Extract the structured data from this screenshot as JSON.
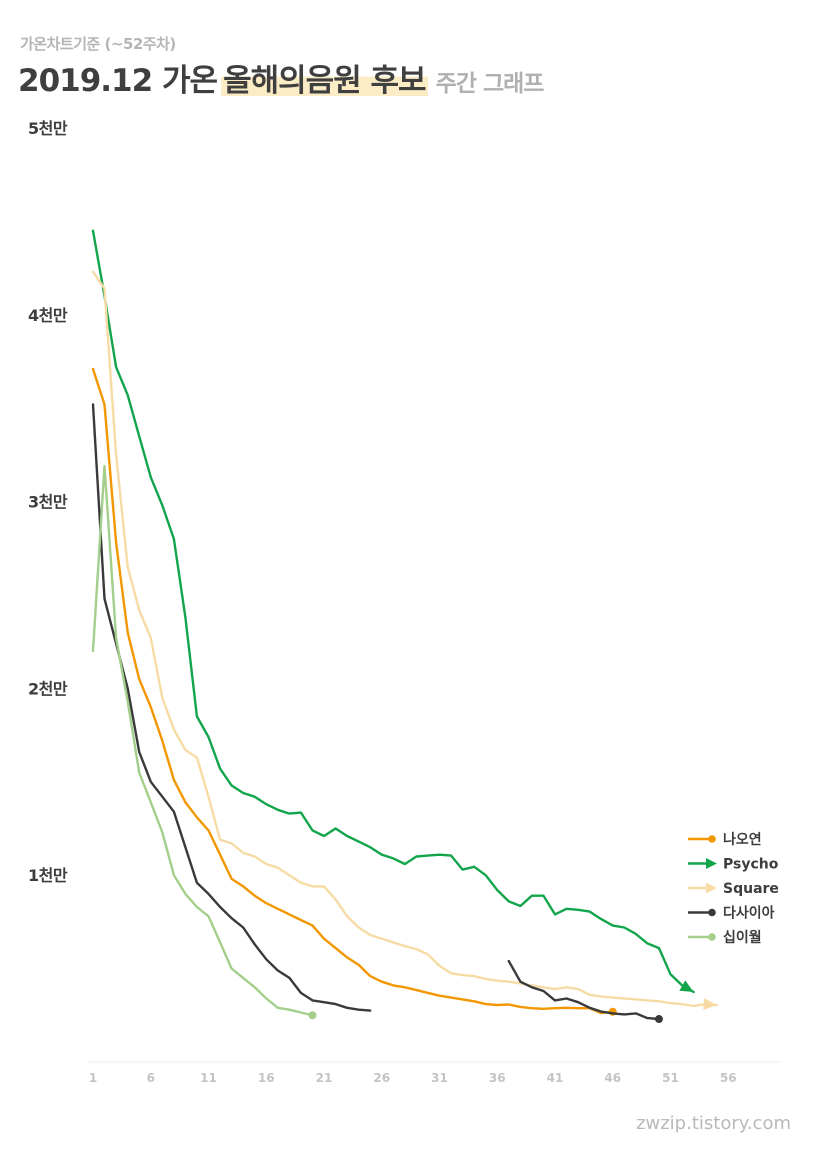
{
  "header": {
    "subtitle": "가온차트기준 (~52주차)",
    "title_prefix": "2019.12 가온",
    "title_highlight": "올해의음원 후보",
    "title_suffix": "주간 그래프"
  },
  "footer": {
    "credit": "zwzip.tistory.com"
  },
  "chart_data": {
    "type": "line",
    "title": "2019.12 가온 올해의음원 후보 주간 그래프",
    "xlabel": "",
    "ylabel": "",
    "x_ticks": [
      1,
      6,
      11,
      16,
      21,
      26,
      31,
      36,
      41,
      46,
      51,
      56
    ],
    "y_ticks": [
      {
        "value": 10000,
        "label": "1천만"
      },
      {
        "value": 20000,
        "label": "2천만"
      },
      {
        "value": 30000,
        "label": "3천만"
      },
      {
        "value": 40000,
        "label": "4천만"
      },
      {
        "value": 50000,
        "label": "5천만"
      }
    ],
    "xlim": [
      1,
      57
    ],
    "ylim": [
      0,
      50000
    ],
    "grid": false,
    "legend_position": "right",
    "series": [
      {
        "name": "나오연",
        "color": "#f39700",
        "end_marker": "dot",
        "x": [
          1,
          2,
          3,
          4,
          5,
          6,
          7,
          8,
          9,
          10,
          11,
          12,
          13,
          14,
          15,
          16,
          17,
          18,
          19,
          20,
          21,
          22,
          23,
          24,
          25,
          26,
          27,
          28,
          29,
          30,
          31,
          32,
          33,
          34,
          35,
          36,
          37,
          38,
          39,
          40,
          41,
          42,
          43,
          44,
          45,
          46
        ],
        "y": [
          37100,
          35200,
          27800,
          23000,
          20500,
          19000,
          17200,
          15100,
          13900,
          13100,
          12400,
          11100,
          9800,
          9400,
          8900,
          8500,
          8200,
          7900,
          7600,
          7300,
          6600,
          6100,
          5600,
          5200,
          4600,
          4300,
          4100,
          4000,
          3850,
          3700,
          3550,
          3450,
          3350,
          3250,
          3100,
          3050,
          3080,
          2950,
          2880,
          2850,
          2880,
          2900,
          2880,
          2880,
          2620,
          2690
        ]
      },
      {
        "name": "Psycho",
        "color": "#12a54b",
        "end_marker": "arrow",
        "x": [
          1,
          2,
          3,
          4,
          5,
          6,
          7,
          8,
          9,
          10,
          11,
          12,
          13,
          14,
          15,
          16,
          17,
          18,
          19,
          20,
          21,
          22,
          23,
          24,
          25,
          26,
          27,
          28,
          29,
          30,
          31,
          32,
          33,
          34,
          35,
          36,
          37,
          38,
          39,
          40,
          41,
          42,
          43,
          44,
          45,
          46,
          47,
          48,
          49,
          50,
          51,
          52,
          53
        ],
        "y": [
          44500,
          41000,
          37200,
          35700,
          33500,
          31300,
          29800,
          28000,
          23800,
          18500,
          17400,
          15700,
          14800,
          14400,
          14200,
          13800,
          13500,
          13300,
          13350,
          12400,
          12100,
          12500,
          12100,
          11800,
          11500,
          11100,
          10900,
          10600,
          11000,
          11050,
          11100,
          11050,
          10300,
          10450,
          10000,
          9200,
          8600,
          8350,
          8900,
          8900,
          7900,
          8200,
          8150,
          8050,
          7650,
          7300,
          7200,
          6850,
          6350,
          6100,
          4700,
          4100,
          3750
        ]
      },
      {
        "name": "Square",
        "color": "#f7dba4",
        "end_marker": "arrow",
        "x": [
          1,
          2,
          3,
          4,
          5,
          6,
          7,
          8,
          9,
          10,
          11,
          12,
          13,
          14,
          15,
          16,
          17,
          18,
          19,
          20,
          21,
          22,
          23,
          24,
          25,
          26,
          27,
          28,
          29,
          30,
          31,
          32,
          33,
          34,
          35,
          36,
          37,
          38,
          39,
          40,
          41,
          42,
          43,
          44,
          45,
          46,
          47,
          48,
          49,
          50,
          51,
          52,
          53,
          54,
          55
        ],
        "y": [
          42300,
          41400,
          32500,
          26500,
          24200,
          22700,
          19500,
          17800,
          16700,
          16300,
          14200,
          11900,
          11700,
          11200,
          11000,
          10600,
          10400,
          10000,
          9600,
          9400,
          9400,
          8700,
          7800,
          7200,
          6800,
          6600,
          6400,
          6200,
          6050,
          5750,
          5150,
          4750,
          4650,
          4600,
          4450,
          4350,
          4300,
          4200,
          4100,
          4000,
          3900,
          4000,
          3900,
          3600,
          3500,
          3450,
          3400,
          3350,
          3300,
          3250,
          3150,
          3100,
          3000,
          3100,
          3050
        ]
      },
      {
        "name": "다사이아",
        "color": "#3a3a3a",
        "end_marker": "dot",
        "segments": [
          {
            "x": [
              1,
              2,
              3,
              4,
              5,
              6,
              7,
              8,
              9,
              10,
              11,
              12,
              13,
              14,
              15,
              16,
              17,
              18,
              19,
              20,
              21,
              22,
              23,
              24,
              25
            ],
            "y": [
              35200,
              24800,
              22400,
              20000,
              16600,
              15000,
              14200,
              13400,
              11500,
              9600,
              9000,
              8300,
              7700,
              7200,
              6300,
              5500,
              4900,
              4500,
              3700,
              3300,
              3200,
              3100,
              2900,
              2800,
              2750
            ]
          },
          {
            "x": [
              37,
              38,
              39,
              40,
              41,
              42,
              43,
              44,
              45,
              46,
              47,
              48,
              49,
              50
            ],
            "y": [
              5400,
              4300,
              4000,
              3800,
              3300,
              3400,
              3200,
              2900,
              2700,
              2600,
              2550,
              2600,
              2350,
              2300
            ]
          }
        ]
      },
      {
        "name": "십이월",
        "color": "#a3cf8b",
        "end_marker": "dot",
        "x": [
          1,
          2,
          3,
          4,
          5,
          6,
          7,
          8,
          9,
          10,
          11,
          12,
          13,
          14,
          15,
          16,
          17,
          18,
          19,
          20
        ],
        "y": [
          22000,
          31900,
          22700,
          19300,
          15500,
          13900,
          12300,
          10000,
          9000,
          8300,
          7800,
          6400,
          5000,
          4500,
          4000,
          3400,
          2900,
          2800,
          2650,
          2500
        ]
      }
    ]
  }
}
